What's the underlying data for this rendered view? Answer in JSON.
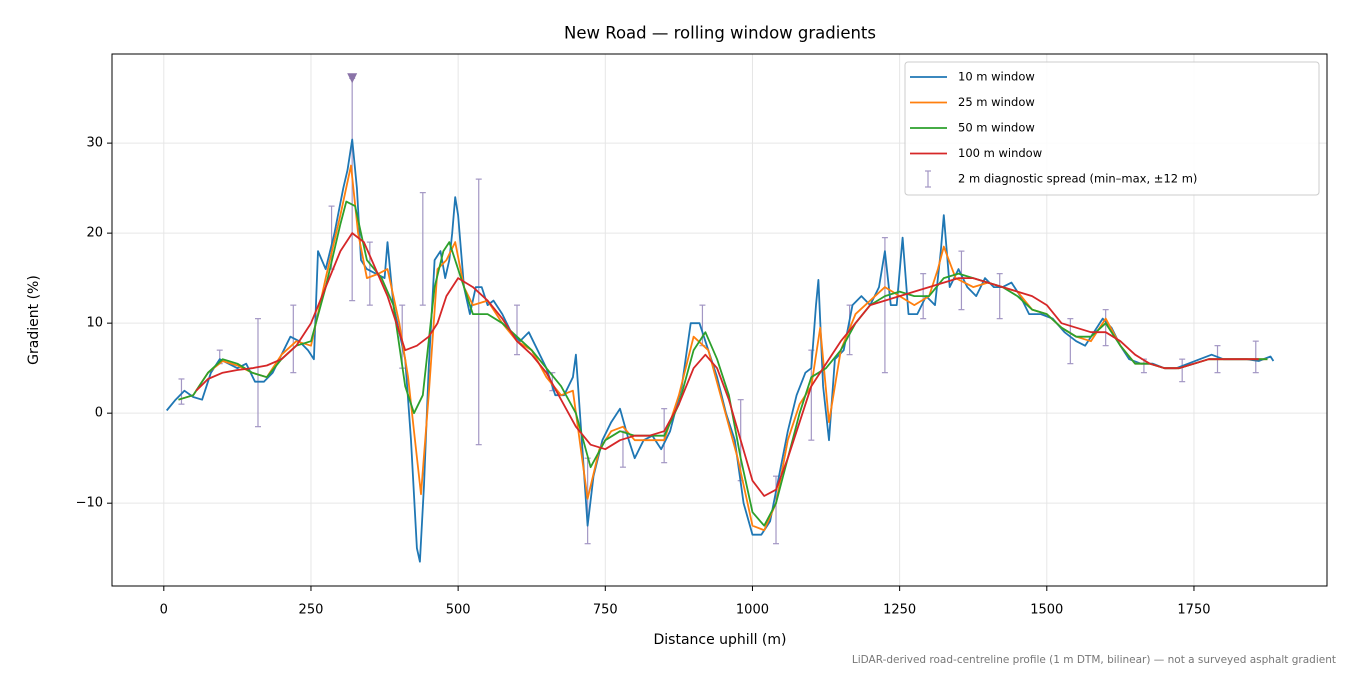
{
  "chart_data": {
    "type": "line",
    "title": "New Road — rolling window gradients",
    "x_label": "Distance uphill (m)",
    "y_label": "Gradient (%)",
    "footnote": "LiDAR-derived road-centreline profile (1 m DTM, bilinear) — not a surveyed asphalt gradient",
    "xlim": [
      -88,
      1976
    ],
    "ylim": [
      -19.2,
      39.9
    ],
    "xticks": [
      0,
      250,
      500,
      750,
      1000,
      1250,
      1500,
      1750
    ],
    "yticks": [
      {
        "value": -10,
        "label": "−10"
      },
      0,
      10,
      20,
      30
    ],
    "grid": true,
    "legend": "upper right",
    "series": [
      {
        "name": "10 m window",
        "color": "#1f77b4",
        "x": [
          5,
          20,
          35,
          50,
          65,
          80,
          95,
          110,
          125,
          140,
          155,
          170,
          185,
          200,
          215,
          230,
          245,
          255,
          262,
          275,
          290,
          305,
          312,
          320,
          328,
          335,
          345,
          360,
          375,
          380,
          390,
          400,
          410,
          420,
          430,
          435,
          442,
          450,
          460,
          470,
          478,
          485,
          490,
          495,
          500,
          510,
          520,
          530,
          540,
          550,
          560,
          575,
          590,
          605,
          620,
          635,
          650,
          665,
          680,
          695,
          700,
          710,
          720,
          730,
          745,
          760,
          775,
          790,
          800,
          815,
          830,
          845,
          860,
          880,
          895,
          910,
          925,
          940,
          955,
          970,
          985,
          1000,
          1015,
          1030,
          1045,
          1060,
          1075,
          1090,
          1100,
          1108,
          1112,
          1120,
          1130,
          1140,
          1155,
          1170,
          1185,
          1200,
          1215,
          1225,
          1235,
          1245,
          1255,
          1265,
          1280,
          1295,
          1310,
          1320,
          1325,
          1335,
          1350,
          1365,
          1380,
          1395,
          1410,
          1425,
          1440,
          1455,
          1470,
          1490,
          1510,
          1530,
          1550,
          1565,
          1580,
          1595,
          1610,
          1625,
          1640,
          1660,
          1680,
          1700,
          1720,
          1740,
          1760,
          1780,
          1800,
          1820,
          1840,
          1860,
          1880,
          1885
        ],
        "values": [
          0.3,
          1.5,
          2.5,
          1.8,
          1.5,
          4.5,
          6,
          5.5,
          5,
          5.5,
          3.5,
          3.5,
          4.5,
          6.5,
          8.5,
          8,
          7,
          6,
          18,
          16,
          20,
          25,
          27,
          30.4,
          25,
          17,
          16,
          15.5,
          15,
          19,
          12,
          9,
          6,
          -3,
          -15,
          -16.5,
          -8,
          5,
          17,
          18,
          15,
          17,
          20,
          24,
          22,
          14,
          11,
          14,
          14,
          12,
          12.5,
          11,
          9,
          8,
          9,
          7,
          5,
          2,
          2,
          4,
          6.5,
          -3,
          -12.5,
          -7,
          -3,
          -1,
          0.5,
          -3,
          -5,
          -3,
          -2.5,
          -4,
          -2,
          3,
          10,
          10,
          7,
          4,
          0,
          -3,
          -10,
          -13.5,
          -13.5,
          -12,
          -7,
          -2,
          2,
          4.5,
          5,
          12,
          14.8,
          3,
          -3,
          6,
          7,
          12,
          13,
          12,
          14,
          18,
          12,
          12,
          19.5,
          11,
          11,
          13,
          12,
          18,
          22,
          14,
          16,
          14,
          13,
          15,
          14,
          14,
          14.5,
          13,
          11,
          11,
          10.5,
          9,
          8,
          7.5,
          9,
          10.5,
          9.5,
          7.5,
          6,
          5.5,
          5.5,
          5,
          5,
          5.5,
          6,
          6.5,
          6,
          6,
          6,
          5.8,
          6.3,
          5.8
        ]
      },
      {
        "name": "25 m window",
        "color": "#ff7f0e",
        "x": [
          25,
          50,
          75,
          100,
          125,
          150,
          175,
          200,
          225,
          250,
          275,
          300,
          318,
          330,
          345,
          365,
          380,
          400,
          415,
          425,
          437,
          450,
          465,
          480,
          495,
          510,
          525,
          550,
          575,
          600,
          625,
          650,
          675,
          695,
          720,
          740,
          760,
          780,
          800,
          825,
          850,
          875,
          900,
          925,
          950,
          975,
          1000,
          1020,
          1040,
          1060,
          1080,
          1100,
          1115,
          1130,
          1150,
          1175,
          1200,
          1225,
          1250,
          1275,
          1300,
          1315,
          1325,
          1345,
          1375,
          1400,
          1425,
          1450,
          1475,
          1500,
          1525,
          1550,
          1575,
          1600,
          1625,
          1650,
          1675,
          1700,
          1725,
          1750,
          1775,
          1800,
          1825,
          1850,
          1875
        ],
        "values": [
          1.5,
          2,
          4.5,
          5.8,
          5.3,
          4.5,
          4,
          6.5,
          8,
          7.5,
          15,
          22,
          27.5,
          20,
          15,
          15.5,
          16,
          10,
          4,
          -2,
          -9,
          2,
          16,
          17,
          19,
          14,
          12,
          12.5,
          10,
          8,
          7,
          4,
          2,
          2.5,
          -9.5,
          -4,
          -2,
          -1.5,
          -3,
          -3,
          -3,
          2,
          8.5,
          7,
          1,
          -5,
          -12.5,
          -13,
          -10,
          -3,
          1,
          3,
          9.5,
          -1,
          7,
          11,
          12.5,
          14,
          13,
          12,
          13,
          16,
          18.5,
          15,
          14,
          14.5,
          14,
          13.5,
          11.5,
          11,
          9.5,
          8.5,
          8,
          10.5,
          7.5,
          5.5,
          5.5,
          5,
          5,
          5.5,
          6,
          6,
          6,
          6,
          6
        ]
      },
      {
        "name": "50 m window",
        "color": "#2ca02c",
        "x": [
          25,
          50,
          75,
          100,
          125,
          150,
          175,
          200,
          225,
          250,
          275,
          300,
          310,
          325,
          345,
          370,
          390,
          410,
          425,
          440,
          460,
          475,
          485,
          500,
          525,
          550,
          575,
          600,
          625,
          650,
          675,
          700,
          725,
          750,
          775,
          800,
          825,
          850,
          875,
          900,
          920,
          940,
          960,
          980,
          1000,
          1020,
          1040,
          1060,
          1080,
          1100,
          1125,
          1150,
          1175,
          1200,
          1225,
          1250,
          1275,
          1300,
          1325,
          1350,
          1375,
          1400,
          1425,
          1450,
          1475,
          1500,
          1525,
          1550,
          1575,
          1600,
          1625,
          1650,
          1675,
          1700,
          1725,
          1750,
          1775,
          1800,
          1825,
          1850,
          1875
        ],
        "values": [
          1.5,
          2,
          4.5,
          6,
          5.5,
          4.5,
          4,
          6,
          7.5,
          8,
          14,
          21,
          23.5,
          23,
          17,
          15,
          12,
          3,
          0,
          2,
          14,
          18,
          19,
          16,
          11,
          11,
          10,
          8.5,
          7,
          5,
          3,
          0,
          -6,
          -3,
          -2,
          -2.5,
          -2.5,
          -2.5,
          1,
          7,
          9,
          6,
          2,
          -5,
          -11,
          -12.5,
          -10,
          -5,
          0,
          4,
          5,
          7,
          10,
          12,
          13,
          13.5,
          13,
          13,
          15,
          15.5,
          15,
          14.5,
          14,
          13,
          11.5,
          11,
          9.5,
          8.5,
          8.5,
          10,
          7.5,
          5.5,
          5.5,
          5,
          5,
          5.5,
          6,
          6,
          6,
          6,
          6
        ]
      },
      {
        "name": "100 m window",
        "color": "#d62728",
        "x": [
          55,
          75,
          100,
          125,
          150,
          175,
          200,
          225,
          250,
          275,
          300,
          320,
          340,
          360,
          380,
          400,
          410,
          430,
          450,
          465,
          480,
          500,
          525,
          550,
          575,
          600,
          625,
          650,
          675,
          700,
          725,
          750,
          775,
          800,
          825,
          850,
          875,
          900,
          920,
          940,
          960,
          980,
          1000,
          1020,
          1040,
          1060,
          1080,
          1100,
          1125,
          1150,
          1175,
          1200,
          1225,
          1250,
          1275,
          1300,
          1325,
          1350,
          1375,
          1400,
          1425,
          1450,
          1475,
          1500,
          1525,
          1550,
          1575,
          1600,
          1625,
          1650,
          1675,
          1700,
          1725,
          1750,
          1775,
          1800,
          1825,
          1850,
          1860
        ],
        "values": [
          2.5,
          3.8,
          4.5,
          4.8,
          5,
          5.3,
          6,
          7.5,
          10,
          14,
          18,
          20,
          19,
          16,
          13,
          9,
          7,
          7.5,
          8.5,
          10,
          13,
          15,
          14,
          12.5,
          10.5,
          8,
          6.5,
          4.5,
          1.5,
          -1.5,
          -3.5,
          -4,
          -3,
          -2.5,
          -2.5,
          -2,
          1,
          5,
          6.5,
          5,
          1.5,
          -3,
          -7.5,
          -9.2,
          -8.5,
          -5,
          -1,
          3,
          5.5,
          8,
          10,
          12,
          12.5,
          13,
          13.5,
          14,
          14.5,
          15,
          15,
          14.5,
          14,
          13.5,
          13,
          12,
          10,
          9.5,
          9,
          9,
          8,
          6.5,
          5.5,
          5,
          5,
          5.5,
          6,
          6,
          6,
          6,
          6
        ]
      }
    ],
    "spread": {
      "name": "2 m diagnostic spread (min–max, ±12 m)",
      "color": "#a397c4",
      "x": [
        30,
        95,
        160,
        220,
        285,
        320,
        350,
        405,
        440,
        535,
        600,
        660,
        720,
        780,
        850,
        915,
        980,
        1040,
        1100,
        1165,
        1225,
        1290,
        1355,
        1420,
        1540,
        1600,
        1665,
        1730,
        1790,
        1855
      ],
      "low": [
        1,
        5.5,
        -1.5,
        4.5,
        16,
        12.5,
        12,
        5,
        12,
        -3.5,
        6.5,
        2.5,
        -14.5,
        -6,
        -5.5,
        7.5,
        -7.5,
        -14.5,
        -3,
        6.5,
        4.5,
        10.5,
        11.5,
        10.5,
        5.5,
        7.5,
        4.5,
        3.5,
        4.5,
        4.5
      ],
      "high": [
        3.8,
        7,
        10.5,
        12,
        23,
        37.2,
        19,
        12,
        24.5,
        26,
        12,
        4.5,
        -5,
        -2,
        0.5,
        12,
        1.5,
        -7,
        7,
        12,
        19.5,
        15.5,
        18,
        15.5,
        10.5,
        11.5,
        6,
        6,
        7.5,
        8
      ]
    },
    "overflow_markers": {
      "x": [
        320
      ],
      "y": [
        37.2
      ],
      "color": "#8a73a8"
    }
  }
}
